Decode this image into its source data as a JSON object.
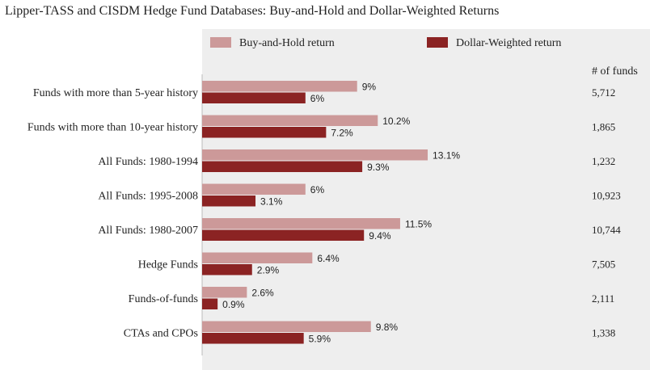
{
  "chart_data": {
    "type": "bar",
    "orientation": "horizontal",
    "title": "Lipper-TASS and CISDM Hedge Fund Databases: Buy-and-Hold and Dollar-Weighted Returns",
    "categories": [
      "Funds with more than 5-year history",
      "Funds with more than 10-year history",
      "All Funds: 1980-1994",
      "All Funds: 1995-2008",
      "All Funds: 1980-2007",
      "Hedge Funds",
      "Funds-of-funds",
      "CTAs and CPOs"
    ],
    "series": [
      {
        "name": "Buy-and-Hold return",
        "color": "#cc9999",
        "values": [
          9,
          10.2,
          13.1,
          6,
          11.5,
          6.4,
          2.6,
          9.8
        ],
        "labels": [
          "9%",
          "10.2%",
          "13.1%",
          "6%",
          "11.5%",
          "6.4%",
          "2.6%",
          "9.8%"
        ]
      },
      {
        "name": "Dollar-Weighted return",
        "color": "#8b2323",
        "values": [
          6,
          7.2,
          9.3,
          3.1,
          9.4,
          2.9,
          0.9,
          5.9
        ],
        "labels": [
          "6%",
          "7.2%",
          "9.3%",
          "3.1%",
          "9.4%",
          "2.9%",
          "0.9%",
          "5.9%"
        ]
      }
    ],
    "funds_header": "# of funds",
    "funds": [
      "5,712",
      "1,865",
      "1,232",
      "10,923",
      "10,744",
      "7,505",
      "2,111",
      "1,338"
    ],
    "xlim": [
      0,
      20
    ],
    "legend_position": "top",
    "background": "#eeeeee"
  }
}
